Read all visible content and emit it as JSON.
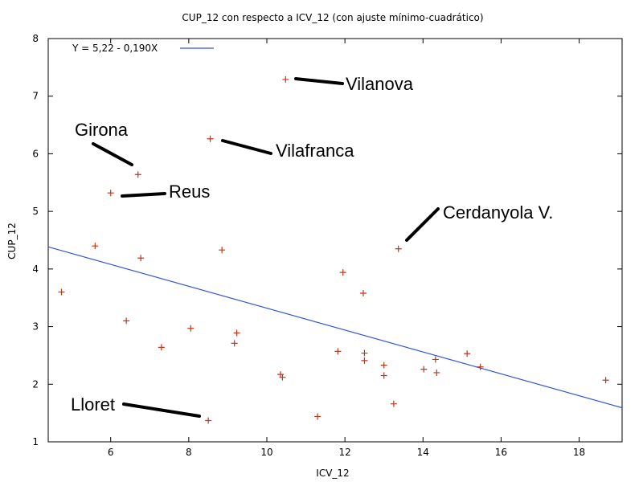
{
  "chart_data": {
    "type": "scatter",
    "title": "CUP_12 con respecto a ICV_12 (con ajuste mínimo-cuadrático)",
    "xlabel": "ICV_12",
    "ylabel": "CUP_12",
    "xlim": [
      4.4,
      19.1
    ],
    "ylim": [
      1,
      8
    ],
    "xticks": [
      6,
      8,
      10,
      12,
      14,
      16,
      18
    ],
    "yticks": [
      1,
      2,
      3,
      4,
      5,
      6,
      7,
      8
    ],
    "grid": false,
    "legend_position": "top-left",
    "series": [
      {
        "name": "",
        "marker": "plus",
        "color": "#cc3311",
        "x": [
          4.74,
          5.6,
          6.0,
          6.4,
          6.7,
          6.77,
          7.3,
          8.05,
          8.5,
          8.55,
          8.85,
          9.17,
          9.23,
          10.35,
          10.4,
          10.48,
          11.3,
          11.82,
          11.95,
          12.47,
          12.5,
          12.5,
          13.0,
          13.0,
          13.25,
          13.37,
          14.02,
          14.32,
          14.35,
          15.13,
          15.47,
          18.68
        ],
        "y": [
          3.6,
          4.4,
          5.32,
          3.1,
          5.64,
          4.19,
          2.64,
          2.97,
          1.37,
          6.26,
          4.33,
          2.71,
          2.89,
          2.17,
          2.12,
          7.29,
          1.44,
          2.57,
          3.94,
          3.58,
          2.54,
          2.41,
          2.33,
          2.15,
          1.66,
          4.35,
          2.26,
          2.43,
          2.2,
          2.53,
          2.3,
          2.07
        ]
      }
    ],
    "fit_line": {
      "label": "Y = 5,22 - 0,190X",
      "color": "#3355dd",
      "intercept": 5.22,
      "slope": -0.19
    },
    "annotations": [
      {
        "text": "Vilanova",
        "point": [
          10.48,
          7.29
        ]
      },
      {
        "text": "Vilafranca",
        "point": [
          8.55,
          6.26
        ]
      },
      {
        "text": "Girona",
        "point": [
          6.7,
          5.64
        ]
      },
      {
        "text": "Reus",
        "point": [
          6.0,
          5.32
        ]
      },
      {
        "text": "Cerdanyola V.",
        "point": [
          13.37,
          4.35
        ]
      },
      {
        "text": "Lloret",
        "point": [
          8.5,
          1.37
        ]
      }
    ]
  }
}
